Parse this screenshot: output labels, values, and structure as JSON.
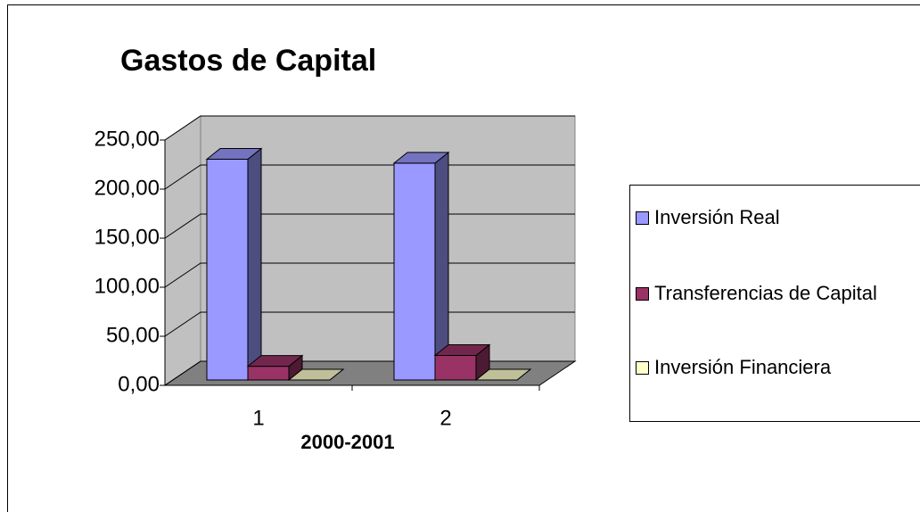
{
  "chart_data": {
    "type": "bar3d",
    "title": "Gastos de Capital",
    "x_label": "2000-2001",
    "categories": [
      "1",
      "2"
    ],
    "series": [
      {
        "name": "Inversión Real",
        "color": "#9999ff",
        "values": [
          225,
          221
        ]
      },
      {
        "name": "Transferencias de Capital",
        "color": "#993366",
        "values": [
          14,
          25
        ]
      },
      {
        "name": "Inversión Financiera",
        "color": "#ffffcc",
        "values": [
          0,
          0
        ]
      }
    ],
    "ylim": [
      0,
      250
    ],
    "yticks": [
      {
        "value": 0,
        "label": "0,00"
      },
      {
        "value": 50,
        "label": "50,00"
      },
      {
        "value": 100,
        "label": "100,00"
      },
      {
        "value": 150,
        "label": "150,00"
      },
      {
        "value": 200,
        "label": "200,00"
      },
      {
        "value": 250,
        "label": "250,00"
      }
    ],
    "grid": true,
    "legend": "right"
  }
}
